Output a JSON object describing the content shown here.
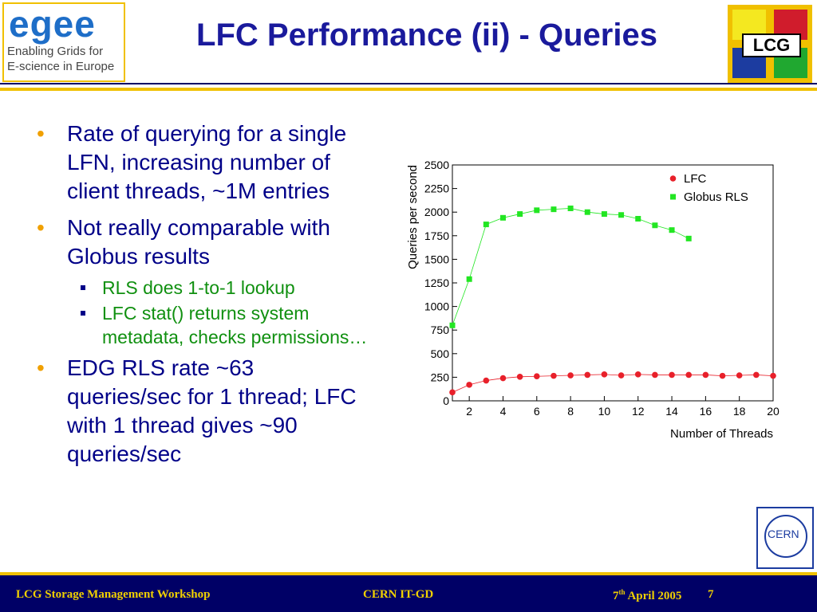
{
  "header": {
    "title": "LFC Performance (ii) - Queries",
    "left_logo": {
      "word": "egee",
      "line1": "Enabling Grids for",
      "line2": "E-science in Europe"
    },
    "right_logo": "LCG"
  },
  "bullets": [
    {
      "level": 1,
      "text": "Rate of querying for a single LFN, increasing number of client threads, ~1M entries"
    },
    {
      "level": 1,
      "text": "Not really comparable with Globus results"
    },
    {
      "level": 2,
      "text": "RLS does 1-to-1 lookup"
    },
    {
      "level": 2,
      "text": "LFC stat() returns system metadata, checks permissions…"
    },
    {
      "level": 1,
      "text": "EDG RLS rate ~63 queries/sec for 1 thread; LFC with 1 thread gives ~90 queries/sec"
    }
  ],
  "chart_data": {
    "type": "line",
    "x_label": "Number of Threads",
    "y_label": "Queries per second",
    "xlim": [
      1,
      20
    ],
    "xticks": [
      2,
      4,
      6,
      8,
      10,
      12,
      14,
      16,
      18,
      20
    ],
    "ylim": [
      0,
      2500
    ],
    "yticks": [
      0,
      250,
      500,
      750,
      1000,
      1250,
      1500,
      1750,
      2000,
      2250,
      2500
    ],
    "x": [
      1,
      2,
      3,
      4,
      5,
      6,
      7,
      8,
      9,
      10,
      11,
      12,
      13,
      14,
      15,
      16,
      17,
      18,
      19,
      20
    ],
    "series": [
      {
        "name": "LFC",
        "color": "#e8202a",
        "marker": "circle",
        "values": [
          90,
          170,
          215,
          240,
          255,
          260,
          265,
          270,
          275,
          280,
          270,
          280,
          275,
          275,
          275,
          275,
          265,
          270,
          275,
          265
        ]
      },
      {
        "name": "Globus RLS",
        "color": "#22e622",
        "marker": "square",
        "values": [
          800,
          1290,
          1870,
          1940,
          1980,
          2020,
          2030,
          2040,
          2000,
          1980,
          1970,
          1930,
          1860,
          1810,
          1720,
          null,
          null,
          null,
          null,
          null
        ]
      }
    ]
  },
  "cern_logo": "CERN",
  "footer": {
    "left": "LCG Storage Management Workshop",
    "center": "CERN IT-GD",
    "date_day": "7",
    "date_suffix": "th",
    "date_rest": "April 2005",
    "page": "7"
  }
}
